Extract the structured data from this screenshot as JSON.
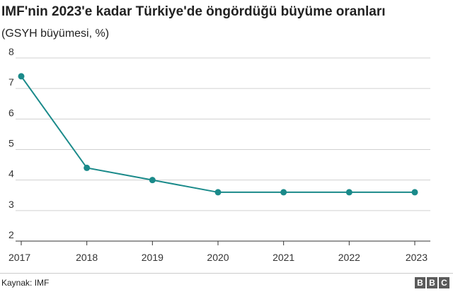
{
  "header": {
    "title": "IMF'nin 2023'e kadar Türkiye'de öngördüğü büyüme oranları",
    "subtitle": "(GSYH büyümesi, %)"
  },
  "footer": {
    "source": "Kaynak: IMF",
    "logo_letters": [
      "B",
      "B",
      "C"
    ]
  },
  "colors": {
    "series": "#1a8a8a",
    "grid": "#d0d0d0",
    "axis": "#333333"
  },
  "chart_data": {
    "type": "line",
    "title": "IMF'nin 2023'e kadar Türkiye'de öngördüğü büyüme oranları",
    "subtitle": "(GSYH büyümesi, %)",
    "x": [
      "2017",
      "2018",
      "2019",
      "2020",
      "2021",
      "2022",
      "2023"
    ],
    "series": [
      {
        "values": [
          7.4,
          4.4,
          4.0,
          3.6,
          3.6,
          3.6,
          3.6
        ]
      }
    ],
    "ylim": [
      2,
      8
    ],
    "yticks": [
      2,
      3,
      4,
      5,
      6,
      7,
      8
    ],
    "grid": true,
    "markers": true,
    "xlabel": "",
    "ylabel": ""
  }
}
